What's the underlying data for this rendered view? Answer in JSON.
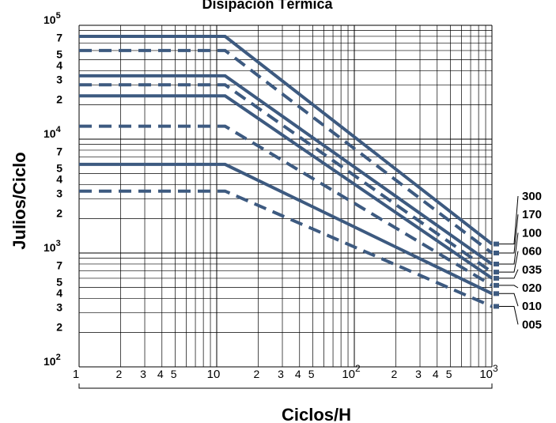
{
  "chart_data": {
    "type": "line",
    "title": "Disipación Térmica",
    "xlabel": "Ciclos/H",
    "ylabel": "Julios/Ciclo",
    "x_scale": "log",
    "y_scale": "log",
    "xlim": [
      1,
      1000
    ],
    "ylim": [
      100,
      100000
    ],
    "grid": true,
    "x_ticks": [
      {
        "value": 1,
        "label": "1",
        "sup": ""
      },
      {
        "value": 2,
        "label": "2",
        "sup": ""
      },
      {
        "value": 3,
        "label": "3",
        "sup": ""
      },
      {
        "value": 4,
        "label": "4",
        "sup": ""
      },
      {
        "value": 5,
        "label": "5",
        "sup": ""
      },
      {
        "value": 10,
        "label": "10",
        "sup": ""
      },
      {
        "value": 20,
        "label": "2",
        "sup": ""
      },
      {
        "value": 30,
        "label": "3",
        "sup": ""
      },
      {
        "value": 40,
        "label": "4",
        "sup": ""
      },
      {
        "value": 50,
        "label": "5",
        "sup": ""
      },
      {
        "value": 100,
        "label": "10",
        "sup": "2"
      },
      {
        "value": 200,
        "label": "2",
        "sup": ""
      },
      {
        "value": 300,
        "label": "3",
        "sup": ""
      },
      {
        "value": 400,
        "label": "4",
        "sup": ""
      },
      {
        "value": 500,
        "label": "5",
        "sup": ""
      },
      {
        "value": 1000,
        "label": "10",
        "sup": "3"
      }
    ],
    "y_ticks": [
      {
        "value": 100,
        "label": "10",
        "sup": "2"
      },
      {
        "value": 200,
        "label": "2",
        "sup": ""
      },
      {
        "value": 300,
        "label": "3",
        "sup": ""
      },
      {
        "value": 400,
        "label": "4",
        "sup": ""
      },
      {
        "value": 500,
        "label": "5",
        "sup": ""
      },
      {
        "value": 700,
        "label": "7",
        "sup": ""
      },
      {
        "value": 1000,
        "label": "10",
        "sup": "3"
      },
      {
        "value": 2000,
        "label": "2",
        "sup": ""
      },
      {
        "value": 3000,
        "label": "3",
        "sup": ""
      },
      {
        "value": 4000,
        "label": "4",
        "sup": ""
      },
      {
        "value": 5000,
        "label": "5",
        "sup": ""
      },
      {
        "value": 7000,
        "label": "7",
        "sup": ""
      },
      {
        "value": 10000,
        "label": "10",
        "sup": "4"
      },
      {
        "value": 20000,
        "label": "2",
        "sup": ""
      },
      {
        "value": 30000,
        "label": "3",
        "sup": ""
      },
      {
        "value": 40000,
        "label": "4",
        "sup": ""
      },
      {
        "value": 50000,
        "label": "5",
        "sup": ""
      },
      {
        "value": 70000,
        "label": "7",
        "sup": ""
      },
      {
        "value": 100000,
        "label": "10",
        "sup": "5"
      }
    ],
    "series": [
      {
        "name": "300",
        "dashed": false,
        "points": [
          [
            1,
            80000
          ],
          [
            11.5,
            80000
          ],
          [
            1000,
            1200
          ]
        ]
      },
      {
        "name": "170",
        "dashed": true,
        "points": [
          [
            1,
            60000
          ],
          [
            11.5,
            60000
          ],
          [
            1000,
            1000
          ]
        ]
      },
      {
        "name": "100",
        "dashed": false,
        "points": [
          [
            1,
            36000
          ],
          [
            11.5,
            36000
          ],
          [
            1000,
            800
          ]
        ]
      },
      {
        "name": "060",
        "dashed": true,
        "points": [
          [
            1,
            30000
          ],
          [
            11.5,
            30000
          ],
          [
            1000,
            680
          ]
        ]
      },
      {
        "name": "035",
        "dashed": false,
        "points": [
          [
            1,
            24000
          ],
          [
            11.5,
            24000
          ],
          [
            1000,
            600
          ]
        ]
      },
      {
        "name": "020",
        "dashed": true,
        "points": [
          [
            1,
            13000
          ],
          [
            11.5,
            13000
          ],
          [
            1000,
            520
          ]
        ]
      },
      {
        "name": "010",
        "dashed": false,
        "points": [
          [
            1,
            6000
          ],
          [
            11.5,
            6000
          ],
          [
            1000,
            440
          ]
        ]
      },
      {
        "name": "005",
        "dashed": true,
        "points": [
          [
            1,
            3500
          ],
          [
            11.5,
            3500
          ],
          [
            1000,
            340
          ]
        ]
      }
    ],
    "legend_placement": "right",
    "colors": {
      "series": "#3d5a80",
      "grid": "#000000",
      "text": "#000000"
    }
  }
}
